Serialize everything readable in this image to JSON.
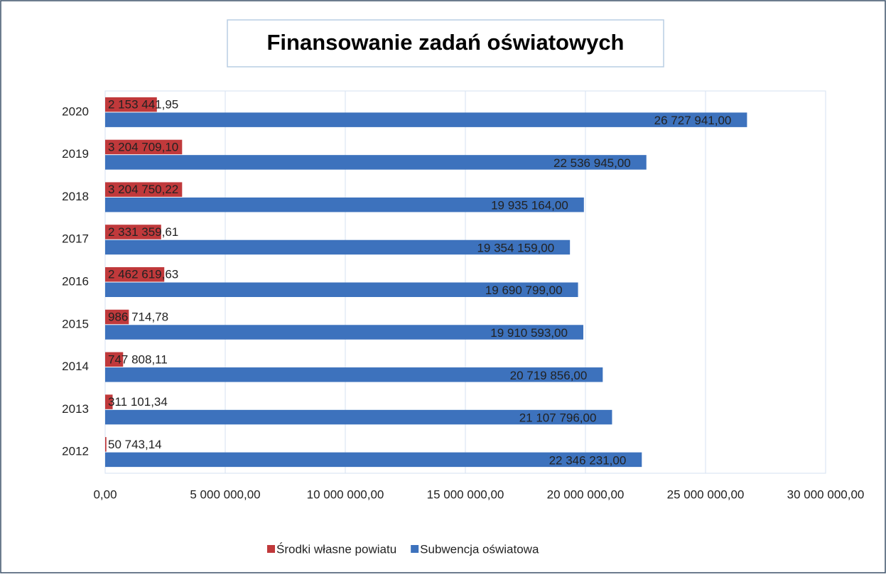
{
  "chart_data": {
    "type": "bar",
    "orientation": "horizontal",
    "title": "Finansowanie zadań oświatowych",
    "categories": [
      "2012",
      "2013",
      "2014",
      "2015",
      "2016",
      "2017",
      "2018",
      "2019",
      "2020"
    ],
    "series": [
      {
        "name": "Środki własne powiatu",
        "color": "#c0393b",
        "values": [
          50743.14,
          311101.34,
          747808.11,
          986714.78,
          2462619.63,
          2331359.61,
          3204750.22,
          3204709.1,
          2153441.95
        ],
        "value_labels": [
          "50 743,14",
          "311 101,34",
          "747 808,11",
          "986 714,78",
          "2 462 619,63",
          "2 331 359,61",
          "3 204 750,22",
          "3 204 709,10",
          "2 153 441,95"
        ]
      },
      {
        "name": "Subwencja oświatowa",
        "color": "#3d72bd",
        "values": [
          22346231,
          21107796,
          20719856,
          19910593,
          19690799,
          19354159,
          19935164,
          22536945,
          26727941
        ],
        "value_labels": [
          "22 346 231,00",
          "21 107 796,00",
          "20 719 856,00",
          "19 910 593,00",
          "19 690 799,00",
          "19 354 159,00",
          "19 935 164,00",
          "22 536 945,00",
          "26 727 941,00"
        ]
      }
    ],
    "xlim": [
      0,
      30000000
    ],
    "xticks": [
      {
        "value": 0,
        "label": "0,00"
      },
      {
        "value": 5000000,
        "label": "5 000 000,00"
      },
      {
        "value": 10000000,
        "label": "10 000 000,00"
      },
      {
        "value": 15000000,
        "label": "15 000 000,00"
      },
      {
        "value": 20000000,
        "label": "20 000 000,00"
      },
      {
        "value": 25000000,
        "label": "25 000 000,00"
      },
      {
        "value": 30000000,
        "label": "30 000 000,00"
      }
    ],
    "grid": true,
    "legend": "bottom"
  }
}
